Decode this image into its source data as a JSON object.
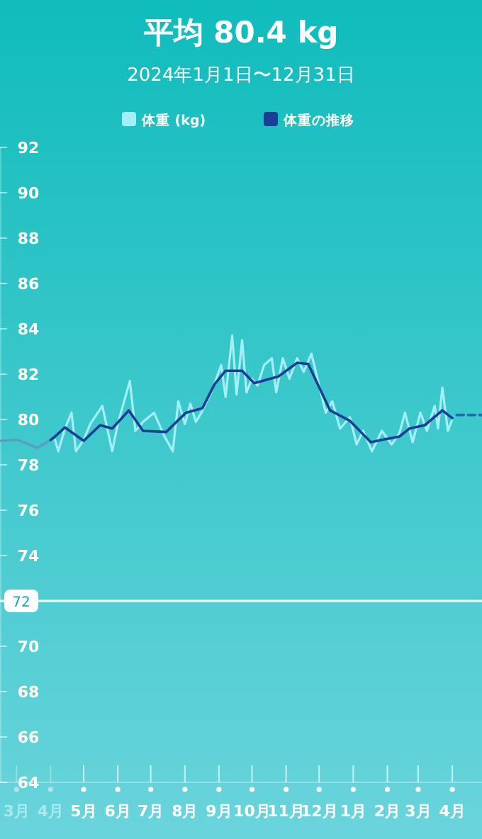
{
  "chart_data": {
    "type": "line",
    "title": "平均 80.4 kg",
    "subtitle": "2024年1月1日〜12月31日",
    "legend": "top",
    "marker": "none",
    "grid": false,
    "xlim": [
      "2024-02-15",
      "2025-04-28"
    ],
    "xticks": [
      {
        "value": "2024-03-01",
        "label": "3月"
      },
      {
        "value": "2024-04-01",
        "label": "4月"
      },
      {
        "value": "2024-05-01",
        "label": "5月"
      },
      {
        "value": "2024-06-01",
        "label": "6月"
      },
      {
        "value": "2024-07-01",
        "label": "7月"
      },
      {
        "value": "2024-08-01",
        "label": "8月"
      },
      {
        "value": "2024-09-01",
        "label": "9月"
      },
      {
        "value": "2024-10-01",
        "label": "10月"
      },
      {
        "value": "2024-11-01",
        "label": "11月"
      },
      {
        "value": "2024-12-01",
        "label": "12月"
      },
      {
        "value": "2025-01-01",
        "label": "1月"
      },
      {
        "value": "2025-02-01",
        "label": "2月"
      },
      {
        "value": "2025-03-01",
        "label": "3月"
      },
      {
        "value": "2025-04-01",
        "label": "4月"
      }
    ],
    "ylim": [
      64,
      92
    ],
    "yticks": [
      64,
      66,
      68,
      70,
      {
        "value": 72,
        "label": null
      },
      74,
      76,
      78,
      80,
      82,
      84,
      86,
      88,
      90,
      92
    ],
    "ref_lines": [
      {
        "axis": "y",
        "value": 72,
        "label": "72",
        "color": "#ffffff"
      }
    ],
    "series": [
      {
        "name": "体重 (kg)",
        "color": "#a6eef5",
        "line_style": "solid",
        "x": [
          "2024-04-05",
          "2024-04-08",
          "2024-04-14",
          "2024-04-20",
          "2024-04-24",
          "2024-05-01",
          "2024-05-07",
          "2024-05-18",
          "2024-05-27",
          "2024-06-01",
          "2024-06-12",
          "2024-06-17",
          "2024-06-24",
          "2024-07-04",
          "2024-07-13",
          "2024-07-21",
          "2024-07-26",
          "2024-08-01",
          "2024-08-06",
          "2024-08-11",
          "2024-08-16",
          "2024-08-25",
          "2024-09-03",
          "2024-09-07",
          "2024-09-13",
          "2024-09-17",
          "2024-09-22",
          "2024-09-26",
          "2024-10-01",
          "2024-10-06",
          "2024-10-12",
          "2024-10-19",
          "2024-10-23",
          "2024-10-29",
          "2024-11-04",
          "2024-11-11",
          "2024-11-17",
          "2024-11-24",
          "2024-11-29",
          "2024-12-07",
          "2024-12-13",
          "2024-12-20",
          "2024-12-29",
          "2025-01-04",
          "2025-01-10",
          "2025-01-18",
          "2025-01-27",
          "2025-02-05",
          "2025-02-12",
          "2025-02-17",
          "2025-02-24",
          "2025-03-03",
          "2025-03-09",
          "2025-03-16",
          "2025-03-19",
          "2025-03-23",
          "2025-03-28",
          "2025-04-01"
        ],
        "values": [
          79.1,
          78.6,
          79.6,
          80.3,
          78.6,
          79.1,
          79.8,
          80.6,
          78.6,
          79.8,
          81.7,
          79.5,
          79.9,
          80.3,
          79.3,
          78.6,
          80.8,
          79.8,
          80.7,
          79.9,
          80.3,
          81.2,
          82.4,
          81.0,
          83.7,
          81.1,
          83.5,
          81.2,
          81.8,
          81.5,
          82.4,
          82.7,
          81.2,
          82.7,
          81.8,
          82.7,
          82.1,
          82.9,
          81.9,
          80.3,
          80.8,
          79.6,
          80.1,
          78.9,
          79.5,
          78.6,
          79.5,
          78.9,
          79.4,
          80.3,
          79.0,
          80.3,
          79.5,
          80.6,
          79.6,
          81.4,
          79.5,
          80.0
        ]
      },
      {
        "color": "#5a9fc0",
        "line_style": "solid",
        "x": [
          "2024-02-15",
          "2024-03-02",
          "2024-03-20",
          "2024-04-01"
        ],
        "values": [
          79.06,
          79.1,
          78.75,
          79.1
        ]
      },
      {
        "name": "体重の推移",
        "color": "#1b3f96",
        "line_style": "solid",
        "x": [
          "2024-04-01",
          "2024-04-05",
          "2024-04-14",
          "2024-05-01",
          "2024-05-16",
          "2024-05-27",
          "2024-06-11",
          "2024-06-24",
          "2024-07-15",
          "2024-08-02",
          "2024-08-17",
          "2024-08-28",
          "2024-09-07",
          "2024-09-22",
          "2024-10-03",
          "2024-10-25",
          "2024-11-11",
          "2024-11-21",
          "2024-12-11",
          "2024-12-29",
          "2025-01-17",
          "2025-01-27",
          "2025-02-12",
          "2025-02-21",
          "2025-03-07",
          "2025-03-23",
          "2025-04-01"
        ],
        "values": [
          79.1,
          79.25,
          79.65,
          79.06,
          79.75,
          79.6,
          80.4,
          79.5,
          79.45,
          80.3,
          80.5,
          81.56,
          82.15,
          82.15,
          81.6,
          81.9,
          82.5,
          82.45,
          80.4,
          79.94,
          79.0,
          79.1,
          79.25,
          79.6,
          79.75,
          80.4,
          80.06
        ]
      },
      {
        "color": "#1b6fae",
        "line_style": "dashed",
        "x": [
          "2025-04-05",
          "2025-04-28"
        ],
        "values": [
          80.2,
          80.2
        ]
      }
    ]
  }
}
